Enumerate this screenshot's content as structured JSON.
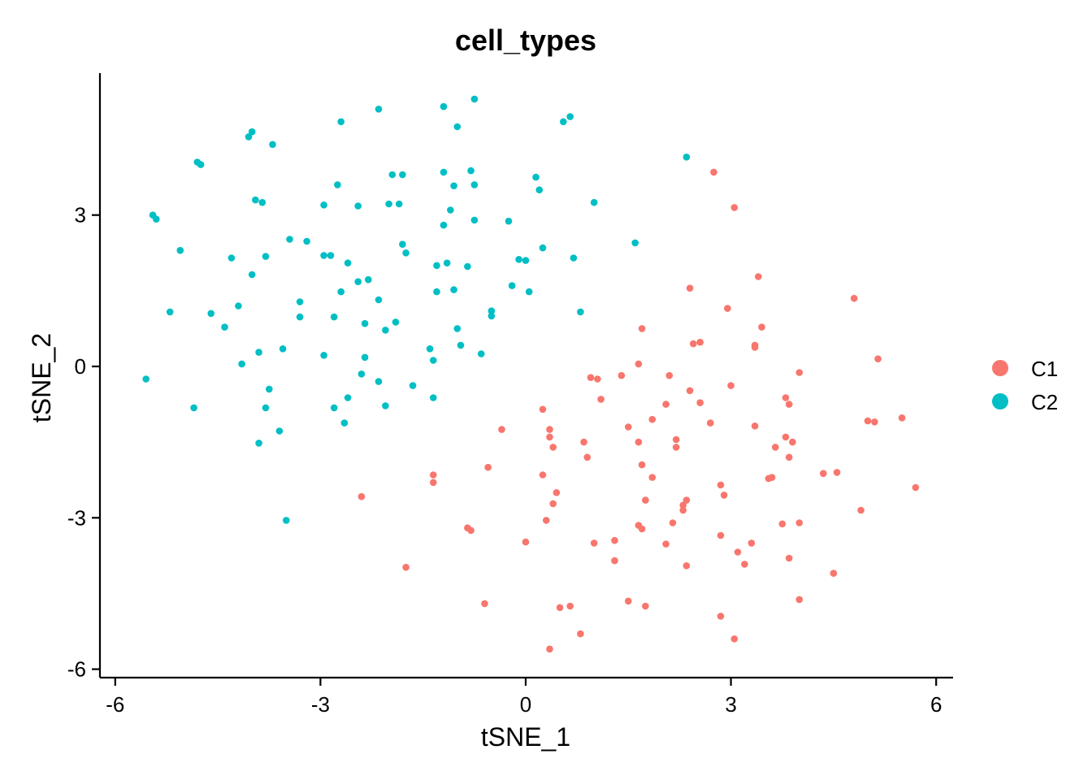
{
  "chart_data": {
    "type": "scatter",
    "title": "cell_types",
    "xlabel": "tSNE_1",
    "ylabel": "tSNE_2",
    "xlim": [
      -6.2,
      6.2
    ],
    "ylim": [
      -6.2,
      5.8
    ],
    "xticks": [
      -6,
      -3,
      0,
      3,
      6
    ],
    "yticks": [
      -6,
      -3,
      0,
      3
    ],
    "xtick_labels": [
      "-6",
      "-3",
      "0",
      "3",
      "6"
    ],
    "ytick_labels": [
      "-6",
      "-3",
      "0",
      "3"
    ],
    "grid": false,
    "legend_position": "right",
    "series": [
      {
        "name": "C1",
        "color": "#F8766D",
        "points": [
          [
            2.75,
            3.85
          ],
          [
            3.05,
            3.15
          ],
          [
            3.4,
            1.78
          ],
          [
            4.8,
            1.35
          ],
          [
            2.4,
            1.55
          ],
          [
            2.95,
            1.15
          ],
          [
            3.45,
            0.78
          ],
          [
            1.7,
            0.75
          ],
          [
            2.45,
            0.45
          ],
          [
            2.55,
            0.48
          ],
          [
            3.35,
            0.38
          ],
          [
            3.35,
            0.42
          ],
          [
            5.15,
            0.15
          ],
          [
            4.0,
            -0.12
          ],
          [
            1.65,
            0.05
          ],
          [
            0.95,
            -0.22
          ],
          [
            1.05,
            -0.25
          ],
          [
            1.4,
            -0.18
          ],
          [
            2.1,
            -0.18
          ],
          [
            3.0,
            -0.38
          ],
          [
            2.4,
            -0.48
          ],
          [
            3.8,
            -0.62
          ],
          [
            3.85,
            -0.75
          ],
          [
            1.1,
            -0.65
          ],
          [
            2.55,
            -0.72
          ],
          [
            2.05,
            -0.75
          ],
          [
            0.25,
            -0.85
          ],
          [
            1.85,
            -1.05
          ],
          [
            2.7,
            -1.12
          ],
          [
            3.35,
            -1.18
          ],
          [
            5.0,
            -1.08
          ],
          [
            5.1,
            -1.1
          ],
          [
            5.5,
            -1.02
          ],
          [
            1.5,
            -1.2
          ],
          [
            0.35,
            -1.25
          ],
          [
            -0.35,
            -1.25
          ],
          [
            0.35,
            -1.4
          ],
          [
            3.8,
            -1.4
          ],
          [
            3.9,
            -1.5
          ],
          [
            0.85,
            -1.5
          ],
          [
            1.65,
            -1.5
          ],
          [
            2.2,
            -1.45
          ],
          [
            3.65,
            -1.6
          ],
          [
            0.4,
            -1.6
          ],
          [
            2.2,
            -1.6
          ],
          [
            0.9,
            -1.8
          ],
          [
            3.85,
            -1.8
          ],
          [
            -0.55,
            -2.0
          ],
          [
            1.7,
            -1.95
          ],
          [
            -1.35,
            -2.15
          ],
          [
            -1.35,
            -2.3
          ],
          [
            0.25,
            -2.15
          ],
          [
            3.6,
            -2.2
          ],
          [
            3.55,
            -2.22
          ],
          [
            4.35,
            -2.12
          ],
          [
            4.55,
            -2.1
          ],
          [
            1.85,
            -2.2
          ],
          [
            2.85,
            -2.35
          ],
          [
            5.7,
            -2.4
          ],
          [
            0.45,
            -2.5
          ],
          [
            2.9,
            -2.55
          ],
          [
            -2.4,
            -2.58
          ],
          [
            1.75,
            -2.65
          ],
          [
            2.35,
            -2.65
          ],
          [
            0.4,
            -2.72
          ],
          [
            2.3,
            -2.75
          ],
          [
            2.3,
            -2.85
          ],
          [
            4.9,
            -2.85
          ],
          [
            0.3,
            -3.05
          ],
          [
            2.15,
            -3.1
          ],
          [
            3.75,
            -3.12
          ],
          [
            4.0,
            -3.1
          ],
          [
            1.65,
            -3.15
          ],
          [
            -0.85,
            -3.2
          ],
          [
            -0.8,
            -3.25
          ],
          [
            1.7,
            -3.22
          ],
          [
            2.85,
            -3.35
          ],
          [
            1.3,
            -3.45
          ],
          [
            0.0,
            -3.48
          ],
          [
            1.0,
            -3.5
          ],
          [
            2.05,
            -3.52
          ],
          [
            3.3,
            -3.5
          ],
          [
            3.1,
            -3.68
          ],
          [
            1.3,
            -3.85
          ],
          [
            3.85,
            -3.8
          ],
          [
            3.2,
            -3.92
          ],
          [
            -1.75,
            -3.98
          ],
          [
            2.35,
            -3.95
          ],
          [
            4.5,
            -4.1
          ],
          [
            1.5,
            -4.65
          ],
          [
            4.0,
            -4.62
          ],
          [
            -0.6,
            -4.7
          ],
          [
            0.65,
            -4.75
          ],
          [
            0.5,
            -4.78
          ],
          [
            1.75,
            -4.75
          ],
          [
            2.85,
            -4.95
          ],
          [
            0.8,
            -5.3
          ],
          [
            3.05,
            -5.4
          ],
          [
            0.35,
            -5.6
          ]
        ]
      },
      {
        "name": "C2",
        "color": "#00BFC4",
        "points": [
          [
            -0.75,
            5.3
          ],
          [
            -1.2,
            5.15
          ],
          [
            -2.15,
            5.1
          ],
          [
            0.65,
            4.95
          ],
          [
            0.55,
            4.85
          ],
          [
            -2.7,
            4.85
          ],
          [
            -1.0,
            4.75
          ],
          [
            -4.0,
            4.65
          ],
          [
            -4.05,
            4.55
          ],
          [
            -3.7,
            4.4
          ],
          [
            2.35,
            4.15
          ],
          [
            -4.8,
            4.05
          ],
          [
            -4.75,
            4.0
          ],
          [
            -1.95,
            3.8
          ],
          [
            -1.8,
            3.8
          ],
          [
            -1.2,
            3.85
          ],
          [
            -0.8,
            3.88
          ],
          [
            0.15,
            3.75
          ],
          [
            -2.75,
            3.6
          ],
          [
            -1.05,
            3.58
          ],
          [
            -0.75,
            3.6
          ],
          [
            0.2,
            3.5
          ],
          [
            -3.95,
            3.3
          ],
          [
            -3.85,
            3.25
          ],
          [
            -2.95,
            3.2
          ],
          [
            -2.0,
            3.22
          ],
          [
            -1.85,
            3.22
          ],
          [
            -2.45,
            3.18
          ],
          [
            1.0,
            3.25
          ],
          [
            -1.1,
            3.1
          ],
          [
            -5.45,
            3.0
          ],
          [
            -5.4,
            2.92
          ],
          [
            -0.75,
            2.9
          ],
          [
            -0.25,
            2.88
          ],
          [
            -1.2,
            2.8
          ],
          [
            1.6,
            2.45
          ],
          [
            -3.45,
            2.52
          ],
          [
            -3.2,
            2.48
          ],
          [
            -1.8,
            2.42
          ],
          [
            0.25,
            2.35
          ],
          [
            -5.05,
            2.3
          ],
          [
            -1.75,
            2.25
          ],
          [
            -2.95,
            2.2
          ],
          [
            -2.85,
            2.2
          ],
          [
            -4.3,
            2.15
          ],
          [
            -3.8,
            2.18
          ],
          [
            0.7,
            2.15
          ],
          [
            -0.1,
            2.12
          ],
          [
            0.0,
            2.1
          ],
          [
            -2.6,
            2.05
          ],
          [
            -1.15,
            2.05
          ],
          [
            -1.3,
            2.0
          ],
          [
            -0.85,
            1.98
          ],
          [
            -4.0,
            1.82
          ],
          [
            -2.3,
            1.72
          ],
          [
            -2.45,
            1.68
          ],
          [
            -0.2,
            1.6
          ],
          [
            -1.05,
            1.52
          ],
          [
            -1.3,
            1.48
          ],
          [
            -2.7,
            1.48
          ],
          [
            0.05,
            1.48
          ],
          [
            -2.15,
            1.32
          ],
          [
            -3.3,
            1.28
          ],
          [
            -4.2,
            1.2
          ],
          [
            -5.2,
            1.08
          ],
          [
            -4.6,
            1.05
          ],
          [
            -0.5,
            1.1
          ],
          [
            -0.5,
            1.0
          ],
          [
            -3.3,
            0.98
          ],
          [
            -2.8,
            0.98
          ],
          [
            0.8,
            1.08
          ],
          [
            -1.9,
            0.88
          ],
          [
            -2.35,
            0.85
          ],
          [
            -4.4,
            0.78
          ],
          [
            -2.05,
            0.72
          ],
          [
            -1.0,
            0.75
          ],
          [
            -0.95,
            0.42
          ],
          [
            -3.55,
            0.35
          ],
          [
            -1.4,
            0.35
          ],
          [
            -3.9,
            0.28
          ],
          [
            -0.65,
            0.25
          ],
          [
            -2.95,
            0.22
          ],
          [
            -2.35,
            0.18
          ],
          [
            -1.35,
            0.12
          ],
          [
            -4.15,
            0.05
          ],
          [
            -2.4,
            -0.15
          ],
          [
            -5.55,
            -0.25
          ],
          [
            -2.15,
            -0.3
          ],
          [
            -1.65,
            -0.38
          ],
          [
            -3.75,
            -0.45
          ],
          [
            -2.6,
            -0.62
          ],
          [
            -1.35,
            -0.62
          ],
          [
            -2.05,
            -0.78
          ],
          [
            -4.85,
            -0.82
          ],
          [
            -3.8,
            -0.82
          ],
          [
            -2.8,
            -0.82
          ],
          [
            -2.65,
            -1.12
          ],
          [
            -3.6,
            -1.28
          ],
          [
            -3.9,
            -1.52
          ],
          [
            -3.5,
            -3.05
          ]
        ]
      }
    ]
  }
}
